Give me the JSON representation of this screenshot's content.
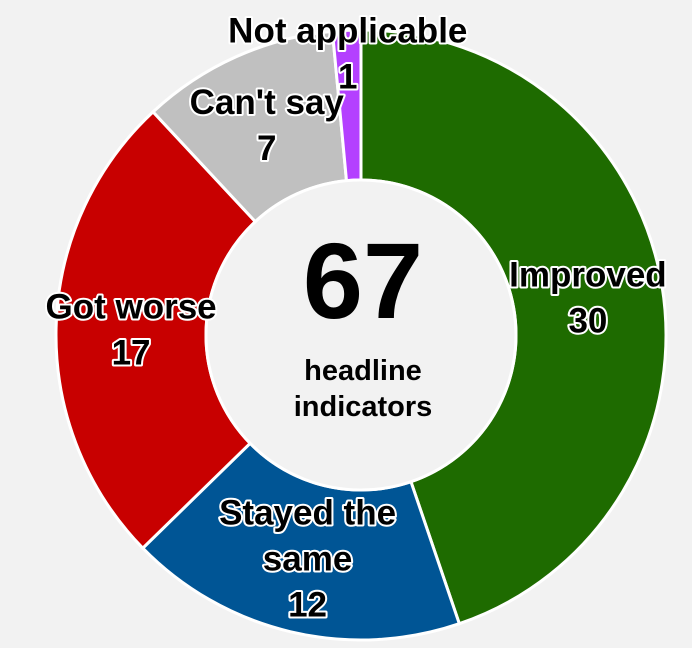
{
  "chart_data": {
    "type": "donut",
    "categories": [
      "Improved",
      "Stayed the same",
      "Got worse",
      "Can't say",
      "Not applicable"
    ],
    "values": [
      30,
      12,
      17,
      7,
      1
    ],
    "colors": [
      "#1e6b00",
      "#005595",
      "#c80000",
      "#c0c0c0",
      "#b440ff"
    ],
    "center_value": 67,
    "center_label": "headline indicators"
  }
}
